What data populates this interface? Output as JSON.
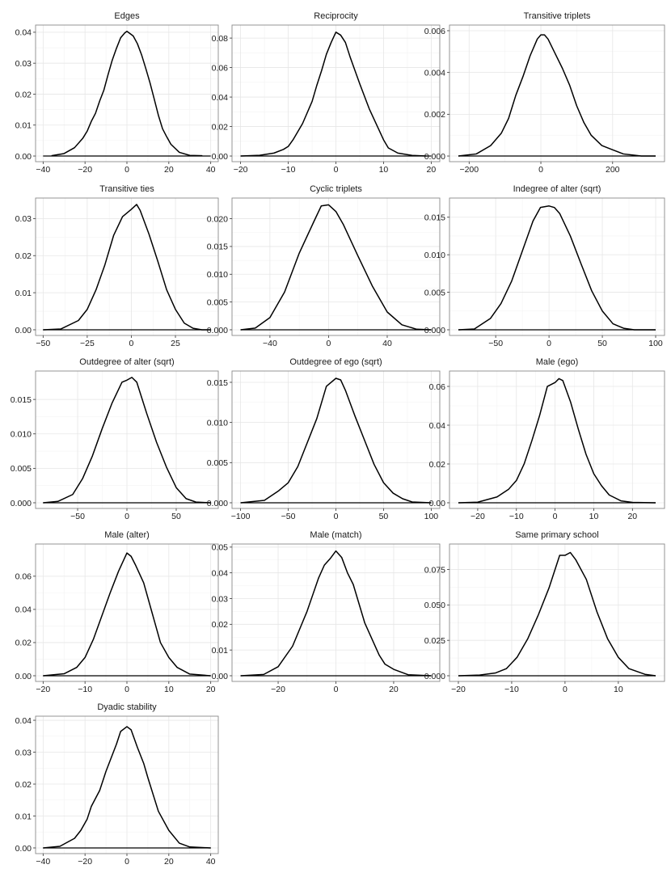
{
  "chart_data": [
    {
      "type": "line",
      "title": "Edges",
      "xlim": [
        -40,
        40
      ],
      "ylim": [
        0,
        0.0405
      ],
      "xticks": [
        -40,
        -20,
        0,
        20,
        40
      ],
      "xtick_labels": [
        "−40",
        "−20",
        "0",
        "20",
        "40"
      ],
      "yticks": [
        0,
        0.01,
        0.02,
        0.03,
        0.04
      ],
      "ytick_labels": [
        "0.00",
        "0.01",
        "0.02",
        "0.03",
        "0.04"
      ],
      "series": [
        {
          "x": [
            -36,
            -30,
            -25,
            -21,
            -19,
            -17,
            -15,
            -13,
            -11,
            -9,
            -7,
            -5,
            -3,
            -1,
            0,
            1,
            3,
            5,
            7,
            9,
            11,
            13,
            15,
            17,
            19,
            21,
            25,
            30,
            36
          ],
          "y": [
            0.0001,
            0.0008,
            0.0027,
            0.0058,
            0.008,
            0.0112,
            0.0138,
            0.0178,
            0.0213,
            0.0263,
            0.031,
            0.0348,
            0.0382,
            0.0398,
            0.0403,
            0.0398,
            0.0388,
            0.0363,
            0.0327,
            0.0283,
            0.0237,
            0.0185,
            0.0132,
            0.0088,
            0.0062,
            0.0038,
            0.0012,
            0.0002,
            0.0001
          ]
        }
      ]
    },
    {
      "type": "line",
      "title": "Reciprocity",
      "xlim": [
        -20,
        20
      ],
      "ylim": [
        0,
        0.085
      ],
      "xticks": [
        -20,
        -10,
        0,
        10,
        20
      ],
      "xtick_labels": [
        "−20",
        "−10",
        "0",
        "10",
        "20"
      ],
      "yticks": [
        0,
        0.02,
        0.04,
        0.06,
        0.08
      ],
      "ytick_labels": [
        "0.00",
        "0.02",
        "0.04",
        "0.06",
        "0.08"
      ],
      "series": [
        {
          "x": [
            -20,
            -16,
            -13,
            -11,
            -10,
            -9,
            -7,
            -5,
            -4,
            -3,
            -2,
            -1,
            0,
            1,
            2,
            3,
            4,
            5,
            7,
            9,
            10,
            11,
            13,
            16,
            19
          ],
          "y": [
            0,
            0.0005,
            0.002,
            0.0045,
            0.0065,
            0.011,
            0.022,
            0.037,
            0.048,
            0.058,
            0.069,
            0.077,
            0.084,
            0.082,
            0.077,
            0.067,
            0.058,
            0.049,
            0.032,
            0.018,
            0.011,
            0.0055,
            0.002,
            0.0004,
            0
          ]
        }
      ]
    },
    {
      "type": "line",
      "title": "Transitive triplets",
      "xlim": [
        -230,
        320
      ],
      "ylim": [
        0,
        0.006
      ],
      "xticks": [
        -200,
        0,
        200
      ],
      "xtick_labels": [
        "−200",
        "0",
        "200"
      ],
      "yticks": [
        0,
        0.002,
        0.004,
        0.006
      ],
      "ytick_labels": [
        "0.000",
        "0.002",
        "0.004",
        "0.006"
      ],
      "series": [
        {
          "x": [
            -230,
            -180,
            -140,
            -110,
            -90,
            -70,
            -50,
            -30,
            -10,
            0,
            10,
            20,
            40,
            60,
            80,
            100,
            120,
            140,
            170,
            200,
            230,
            280,
            320
          ],
          "y": [
            0,
            0.0001,
            0.0005,
            0.0011,
            0.0018,
            0.0029,
            0.0038,
            0.0048,
            0.0056,
            0.0058,
            0.0058,
            0.0056,
            0.0049,
            0.0042,
            0.0034,
            0.0024,
            0.0016,
            0.001,
            0.0005,
            0.0003,
            0.0001,
            0,
            0
          ]
        }
      ]
    },
    {
      "type": "line",
      "title": "Transitive ties",
      "xlim": [
        -50,
        45
      ],
      "ylim": [
        0,
        0.034
      ],
      "xticks": [
        -50,
        -25,
        0,
        25
      ],
      "xtick_labels": [
        "−50",
        "−25",
        "0",
        "25"
      ],
      "yticks": [
        0,
        0.01,
        0.02,
        0.03
      ],
      "ytick_labels": [
        "0.00",
        "0.01",
        "0.02",
        "0.03"
      ],
      "series": [
        {
          "x": [
            -50,
            -40,
            -30,
            -25,
            -20,
            -15,
            -10,
            -5,
            0,
            3,
            5,
            10,
            15,
            20,
            25,
            30,
            35,
            40,
            45
          ],
          "y": [
            0,
            0.0002,
            0.0025,
            0.0055,
            0.0108,
            0.0175,
            0.0255,
            0.0305,
            0.0325,
            0.0338,
            0.0322,
            0.0258,
            0.0185,
            0.0108,
            0.0055,
            0.0018,
            0.0004,
            0,
            0
          ]
        }
      ]
    },
    {
      "type": "line",
      "title": "Cyclic triplets",
      "xlim": [
        -60,
        70
      ],
      "ylim": [
        0,
        0.0227
      ],
      "xticks": [
        -40,
        0,
        40
      ],
      "xtick_labels": [
        "−40",
        "0",
        "40"
      ],
      "yticks": [
        0,
        0.005,
        0.01,
        0.015,
        0.02
      ],
      "ytick_labels": [
        "0.000",
        "0.005",
        "0.010",
        "0.015",
        "0.020"
      ],
      "series": [
        {
          "x": [
            -60,
            -50,
            -40,
            -30,
            -20,
            -10,
            -5,
            0,
            5,
            10,
            20,
            30,
            40,
            50,
            60,
            70
          ],
          "y": [
            0,
            0.0003,
            0.0022,
            0.0068,
            0.0138,
            0.0195,
            0.0223,
            0.0225,
            0.0213,
            0.019,
            0.0133,
            0.0078,
            0.0032,
            0.0009,
            0.0001,
            0
          ]
        }
      ]
    },
    {
      "type": "line",
      "title": "Indegree of alter (sqrt)",
      "xlim": [
        -85,
        100
      ],
      "ylim": [
        0,
        0.0168
      ],
      "xticks": [
        -50,
        0,
        50,
        100
      ],
      "xtick_labels": [
        "−50",
        "0",
        "50",
        "100"
      ],
      "yticks": [
        0,
        0.005,
        0.01,
        0.015
      ],
      "ytick_labels": [
        "0.000",
        "0.005",
        "0.010",
        "0.015"
      ],
      "series": [
        {
          "x": [
            -85,
            -70,
            -55,
            -45,
            -35,
            -25,
            -15,
            -8,
            0,
            5,
            10,
            20,
            30,
            40,
            50,
            60,
            70,
            80,
            100
          ],
          "y": [
            0,
            0.0001,
            0.0015,
            0.0035,
            0.0065,
            0.0105,
            0.0145,
            0.0163,
            0.0165,
            0.0163,
            0.0155,
            0.0125,
            0.0088,
            0.0052,
            0.0025,
            0.0008,
            0.0002,
            0,
            0
          ]
        }
      ]
    },
    {
      "type": "line",
      "title": "Outdegree of alter (sqrt)",
      "xlim": [
        -85,
        85
      ],
      "ylim": [
        0,
        0.0183
      ],
      "xticks": [
        -50,
        0,
        50
      ],
      "xtick_labels": [
        "−50",
        "0",
        "50"
      ],
      "yticks": [
        0,
        0.005,
        0.01,
        0.015
      ],
      "ytick_labels": [
        "0.000",
        "0.005",
        "0.010",
        "0.015"
      ],
      "series": [
        {
          "x": [
            -85,
            -70,
            -55,
            -45,
            -35,
            -25,
            -15,
            -5,
            0,
            5,
            10,
            20,
            30,
            40,
            50,
            60,
            70,
            85
          ],
          "y": [
            0,
            0.0002,
            0.0012,
            0.0035,
            0.0068,
            0.0108,
            0.0145,
            0.0175,
            0.0178,
            0.0182,
            0.0175,
            0.013,
            0.0088,
            0.0052,
            0.0022,
            0.0006,
            0.0001,
            0
          ]
        }
      ]
    },
    {
      "type": "line",
      "title": "Outdegree of ego (sqrt)",
      "xlim": [
        -100,
        100
      ],
      "ylim": [
        0,
        0.0157
      ],
      "xticks": [
        -100,
        -50,
        0,
        50,
        100
      ],
      "xtick_labels": [
        "−100",
        "−50",
        "0",
        "50",
        "100"
      ],
      "yticks": [
        0,
        0.005,
        0.01,
        0.015
      ],
      "ytick_labels": [
        "0.000",
        "0.005",
        "0.010",
        "0.015"
      ],
      "series": [
        {
          "x": [
            -100,
            -75,
            -60,
            -50,
            -40,
            -30,
            -20,
            -10,
            0,
            5,
            10,
            20,
            30,
            40,
            50,
            60,
            70,
            80,
            100
          ],
          "y": [
            0,
            0.0003,
            0.0015,
            0.0025,
            0.0045,
            0.0075,
            0.0105,
            0.0145,
            0.0155,
            0.0153,
            0.014,
            0.0108,
            0.0078,
            0.0048,
            0.0025,
            0.0012,
            0.0005,
            0.0001,
            0
          ]
        }
      ]
    },
    {
      "type": "line",
      "title": "Male (ego)",
      "xlim": [
        -25,
        26
      ],
      "ylim": [
        0,
        0.065
      ],
      "xticks": [
        -20,
        -10,
        0,
        10,
        20
      ],
      "xtick_labels": [
        "−20",
        "−10",
        "0",
        "10",
        "20"
      ],
      "yticks": [
        0,
        0.02,
        0.04,
        0.06
      ],
      "ytick_labels": [
        "0.00",
        "0.02",
        "0.04",
        "0.06"
      ],
      "series": [
        {
          "x": [
            -25,
            -20,
            -15,
            -12,
            -10,
            -8,
            -6,
            -4,
            -2,
            0,
            1,
            2,
            4,
            6,
            8,
            10,
            12,
            14,
            17,
            20,
            26
          ],
          "y": [
            0,
            0.0003,
            0.003,
            0.007,
            0.0115,
            0.02,
            0.032,
            0.045,
            0.06,
            0.062,
            0.064,
            0.063,
            0.052,
            0.038,
            0.025,
            0.015,
            0.0088,
            0.004,
            0.001,
            0.0002,
            0
          ]
        }
      ]
    },
    {
      "type": "line",
      "title": "Male (alter)",
      "xlim": [
        -20,
        20
      ],
      "ylim": [
        0,
        0.076
      ],
      "xticks": [
        -20,
        -10,
        0,
        10,
        20
      ],
      "xtick_labels": [
        "−20",
        "−10",
        "0",
        "10",
        "20"
      ],
      "yticks": [
        0,
        0.02,
        0.04,
        0.06
      ],
      "ytick_labels": [
        "0.00",
        "0.02",
        "0.04",
        "0.06"
      ],
      "series": [
        {
          "x": [
            -20,
            -15,
            -12,
            -10,
            -8,
            -6,
            -4,
            -2,
            0,
            1,
            2,
            4,
            6,
            8,
            10,
            12,
            15,
            20
          ],
          "y": [
            0,
            0.0012,
            0.005,
            0.011,
            0.022,
            0.036,
            0.05,
            0.063,
            0.074,
            0.072,
            0.067,
            0.056,
            0.038,
            0.02,
            0.011,
            0.005,
            0.001,
            0
          ]
        }
      ]
    },
    {
      "type": "line",
      "title": "Male (match)",
      "xlim": [
        -33,
        33
      ],
      "ylim": [
        0,
        0.049
      ],
      "xticks": [
        -20,
        0,
        20
      ],
      "xtick_labels": [
        "−20",
        "0",
        "20"
      ],
      "yticks": [
        0,
        0.01,
        0.02,
        0.03,
        0.04,
        0.05
      ],
      "ytick_labels": [
        "0.00",
        "0.01",
        "0.02",
        "0.03",
        "0.04",
        "0.05"
      ],
      "series": [
        {
          "x": [
            -33,
            -25,
            -20,
            -15,
            -10,
            -6,
            -4,
            -2,
            0,
            2,
            4,
            6,
            10,
            15,
            17,
            20,
            25,
            33
          ],
          "y": [
            0,
            0.0005,
            0.0035,
            0.0115,
            0.025,
            0.038,
            0.043,
            0.0455,
            0.0485,
            0.046,
            0.04,
            0.0355,
            0.0205,
            0.008,
            0.0045,
            0.0025,
            0.0004,
            0
          ]
        }
      ]
    },
    {
      "type": "line",
      "title": "Same primary school",
      "xlim": [
        -20,
        17
      ],
      "ylim": [
        0,
        0.089
      ],
      "xticks": [
        -20,
        -10,
        0,
        10
      ],
      "xtick_labels": [
        "−20",
        "−10",
        "0",
        "10"
      ],
      "yticks": [
        0,
        0.025,
        0.05,
        0.075
      ],
      "ytick_labels": [
        "0.000",
        "0.025",
        "0.050",
        "0.075"
      ],
      "series": [
        {
          "x": [
            -20,
            -16,
            -13,
            -11,
            -9,
            -7,
            -5,
            -3,
            -1,
            0,
            1,
            2,
            4,
            6,
            8,
            10,
            12,
            15,
            17
          ],
          "y": [
            0,
            0.0005,
            0.002,
            0.005,
            0.013,
            0.026,
            0.043,
            0.062,
            0.085,
            0.085,
            0.087,
            0.082,
            0.068,
            0.045,
            0.026,
            0.013,
            0.005,
            0.001,
            0
          ]
        }
      ]
    },
    {
      "type": "line",
      "title": "Dyadic stability",
      "xlim": [
        -40,
        40
      ],
      "ylim": [
        0,
        0.0395
      ],
      "xticks": [
        -40,
        -20,
        0,
        20,
        40
      ],
      "xtick_labels": [
        "−40",
        "−20",
        "0",
        "20",
        "40"
      ],
      "yticks": [
        0,
        0.01,
        0.02,
        0.03,
        0.04
      ],
      "ytick_labels": [
        "0.00",
        "0.01",
        "0.02",
        "0.03",
        "0.04"
      ],
      "series": [
        {
          "x": [
            -40,
            -32,
            -25,
            -22,
            -19,
            -17,
            -15,
            -13,
            -10,
            -5,
            -3,
            0,
            2,
            5,
            8,
            10,
            15,
            20,
            25,
            30,
            40
          ],
          "y": [
            0,
            0.0005,
            0.003,
            0.0055,
            0.009,
            0.013,
            0.0155,
            0.018,
            0.024,
            0.0325,
            0.0365,
            0.038,
            0.037,
            0.0315,
            0.0265,
            0.022,
            0.0115,
            0.0055,
            0.0015,
            0.0003,
            0
          ]
        }
      ]
    }
  ]
}
